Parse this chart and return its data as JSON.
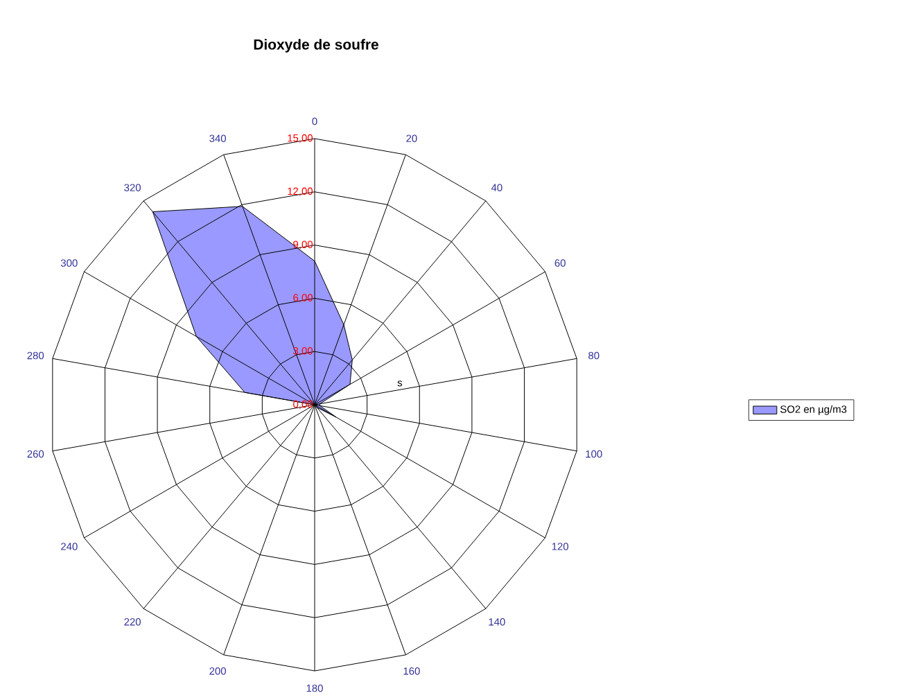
{
  "chart_data": {
    "type": "radar",
    "title": "Dioxyde de soufre",
    "categories": [
      "0",
      "20",
      "40",
      "60",
      "80",
      "100",
      "120",
      "140",
      "160",
      "180",
      "200",
      "220",
      "240",
      "260",
      "280",
      "300",
      "320",
      "340"
    ],
    "series": [
      {
        "name": "SO2 en µg/m3",
        "color": "#9999ff",
        "values": [
          8.1,
          4.8,
          3.3,
          2.3,
          0.3,
          0.3,
          1.4,
          0.2,
          0,
          0,
          0,
          0,
          0,
          0,
          4.0,
          7.7,
          14.2,
          11.9
        ]
      }
    ],
    "ylim": [
      0,
      15
    ],
    "yticks": [
      {
        "value": 0,
        "label": "0,00"
      },
      {
        "value": 3,
        "label": "3,00"
      },
      {
        "value": 6,
        "label": "6,00"
      },
      {
        "value": 9,
        "label": "9,00"
      },
      {
        "value": 12,
        "label": "12,00"
      },
      {
        "value": 15,
        "label": "15,00"
      }
    ],
    "grid": true,
    "legend": "right",
    "marker": "none",
    "annotations": [
      "s"
    ]
  }
}
